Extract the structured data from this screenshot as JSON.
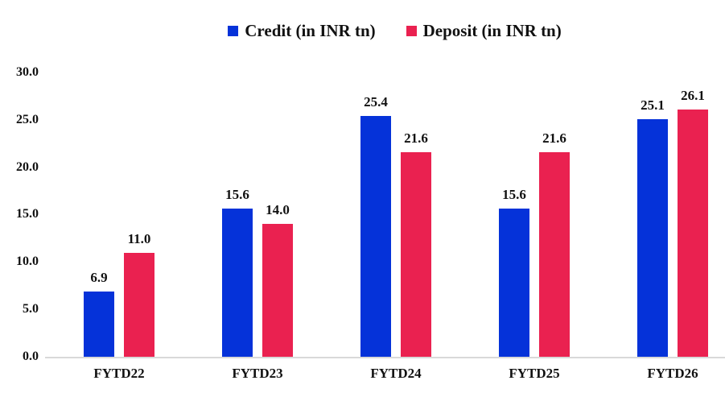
{
  "chart_data": {
    "type": "bar",
    "title": "",
    "categories": [
      "FYTD22",
      "FYTD23",
      "FYTD24",
      "FYTD25",
      "FYTD26"
    ],
    "series": [
      {
        "name": "Credit (in INR tn)",
        "color": "#0532d9",
        "values": [
          6.9,
          15.6,
          25.4,
          15.6,
          25.1
        ]
      },
      {
        "name": "Deposit (in INR tn)",
        "color": "#ea2150",
        "values": [
          11.0,
          14.0,
          21.6,
          21.6,
          26.1
        ]
      }
    ],
    "data_labels": [
      [
        "6.9",
        "15.6",
        "25.4",
        "15.6",
        "25.1"
      ],
      [
        "11.0",
        "14.0",
        "21.6",
        "21.6",
        "26.1"
      ]
    ],
    "yticks": [
      "0.0",
      "5.0",
      "10.0",
      "15.0",
      "20.0",
      "25.0",
      "30.0"
    ],
    "ylim": [
      0,
      30
    ],
    "grid": false,
    "legend_position": "top",
    "axis_line_color": "#d9d9d9",
    "text_color": "#111111",
    "background_color": "#ffffff"
  }
}
